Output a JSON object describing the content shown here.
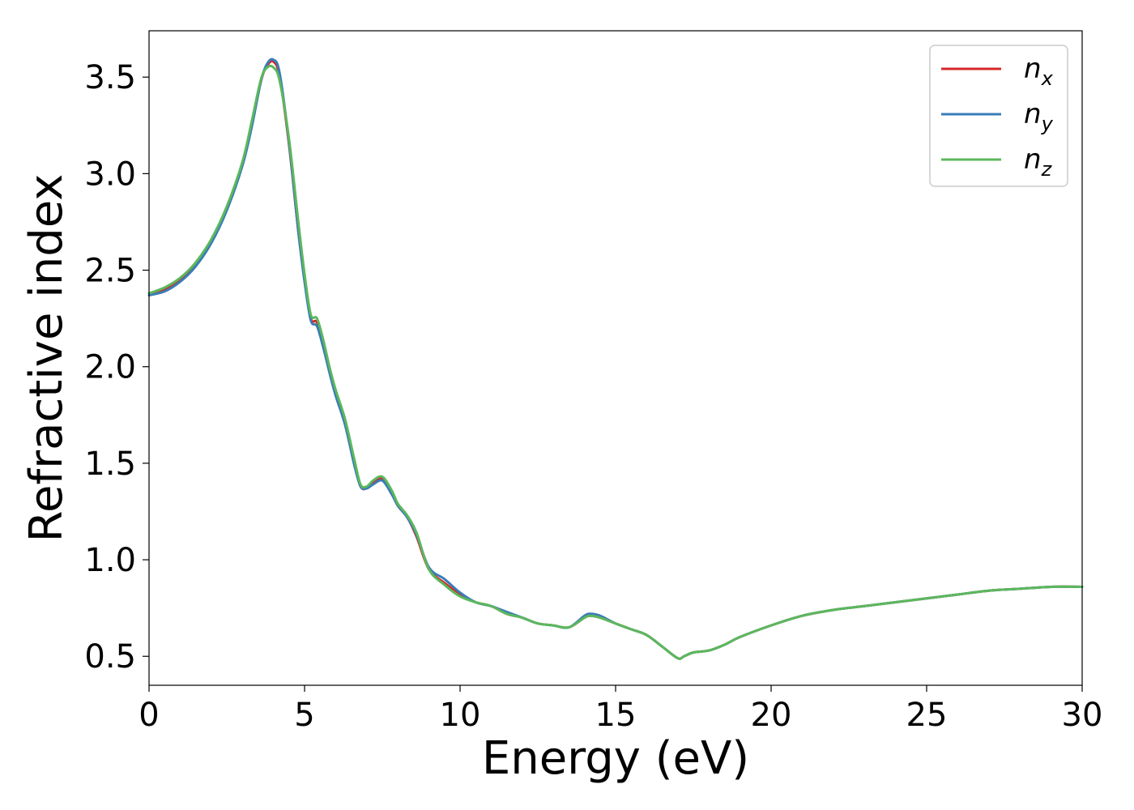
{
  "chart_data": {
    "type": "line",
    "title": "",
    "xlabel": "Energy (eV)",
    "ylabel": "Refractive index",
    "xlim": [
      0,
      30
    ],
    "ylim": [
      0.35,
      3.74
    ],
    "xticks": [
      0,
      5,
      10,
      15,
      20,
      25,
      30
    ],
    "yticks": [
      0.5,
      1.0,
      1.5,
      2.0,
      2.5,
      3.0,
      3.5
    ],
    "xtick_labels": [
      "0",
      "5",
      "10",
      "15",
      "20",
      "25",
      "30"
    ],
    "ytick_labels": [
      "0.5",
      "1.0",
      "1.5",
      "2.0",
      "2.5",
      "3.0",
      "3.5"
    ],
    "grid": false,
    "legend": "top-right",
    "series": [
      {
        "name": "n",
        "subscript": "x",
        "color": "#d62728",
        "x": [
          0,
          0.5,
          1,
          1.5,
          2,
          2.5,
          3,
          3.3,
          3.6,
          3.8,
          4.0,
          4.2,
          4.5,
          4.8,
          5.0,
          5.2,
          5.4,
          5.6,
          5.8,
          6.0,
          6.3,
          6.6,
          6.8,
          7.0,
          7.2,
          7.5,
          7.8,
          8.0,
          8.3,
          8.6,
          9.0,
          9.5,
          10.0,
          10.5,
          11.0,
          11.5,
          12.0,
          12.5,
          13.0,
          13.5,
          14.0,
          14.2,
          14.5,
          15.0,
          15.5,
          16.0,
          16.5,
          17.0,
          17.2,
          17.5,
          18.0,
          18.5,
          19.0,
          20.0,
          21.0,
          22.0,
          23.0,
          24.0,
          25.0,
          26.0,
          27.0,
          28.0,
          29.0,
          30.0
        ],
        "y": [
          2.38,
          2.4,
          2.45,
          2.53,
          2.65,
          2.82,
          3.05,
          3.25,
          3.48,
          3.56,
          3.58,
          3.5,
          3.15,
          2.7,
          2.45,
          2.25,
          2.23,
          2.12,
          1.98,
          1.86,
          1.72,
          1.5,
          1.38,
          1.37,
          1.4,
          1.42,
          1.35,
          1.28,
          1.22,
          1.12,
          0.95,
          0.88,
          0.82,
          0.78,
          0.76,
          0.72,
          0.7,
          0.67,
          0.66,
          0.65,
          0.7,
          0.71,
          0.7,
          0.67,
          0.64,
          0.61,
          0.55,
          0.49,
          0.5,
          0.52,
          0.53,
          0.56,
          0.6,
          0.66,
          0.71,
          0.74,
          0.76,
          0.78,
          0.8,
          0.82,
          0.84,
          0.85,
          0.86,
          0.86
        ]
      },
      {
        "name": "n",
        "subscript": "y",
        "color": "#3a7cb8",
        "x": [
          0,
          0.5,
          1,
          1.5,
          2,
          2.5,
          3,
          3.3,
          3.6,
          3.8,
          4.0,
          4.2,
          4.5,
          4.8,
          5.0,
          5.2,
          5.4,
          5.6,
          5.8,
          6.0,
          6.3,
          6.6,
          6.8,
          7.0,
          7.2,
          7.5,
          7.8,
          8.0,
          8.3,
          8.6,
          9.0,
          9.5,
          10.0,
          10.5,
          11.0,
          11.5,
          12.0,
          12.5,
          13.0,
          13.5,
          14.0,
          14.2,
          14.5,
          15.0,
          15.5,
          16.0,
          16.5,
          17.0,
          17.2,
          17.5,
          18.0,
          18.5,
          19.0,
          20.0,
          21.0,
          22.0,
          23.0,
          24.0,
          25.0,
          26.0,
          27.0,
          28.0,
          29.0,
          30.0
        ],
        "y": [
          2.37,
          2.39,
          2.44,
          2.52,
          2.64,
          2.81,
          3.04,
          3.24,
          3.48,
          3.57,
          3.59,
          3.52,
          3.16,
          2.7,
          2.44,
          2.24,
          2.21,
          2.1,
          1.97,
          1.85,
          1.7,
          1.49,
          1.38,
          1.37,
          1.39,
          1.41,
          1.34,
          1.28,
          1.22,
          1.13,
          0.96,
          0.9,
          0.83,
          0.78,
          0.76,
          0.73,
          0.7,
          0.67,
          0.66,
          0.65,
          0.71,
          0.72,
          0.71,
          0.67,
          0.64,
          0.61,
          0.55,
          0.49,
          0.5,
          0.52,
          0.53,
          0.56,
          0.6,
          0.66,
          0.71,
          0.74,
          0.76,
          0.78,
          0.8,
          0.82,
          0.84,
          0.85,
          0.86,
          0.86
        ]
      },
      {
        "name": "n",
        "subscript": "z",
        "color": "#5cb85c",
        "x": [
          0,
          0.5,
          1,
          1.5,
          2,
          2.5,
          3,
          3.3,
          3.6,
          3.8,
          4.0,
          4.2,
          4.5,
          4.8,
          5.0,
          5.2,
          5.4,
          5.6,
          5.8,
          6.0,
          6.3,
          6.6,
          6.8,
          7.0,
          7.2,
          7.5,
          7.8,
          8.0,
          8.3,
          8.6,
          9.0,
          9.5,
          10.0,
          10.5,
          11.0,
          11.5,
          12.0,
          12.5,
          13.0,
          13.5,
          14.0,
          14.2,
          14.5,
          15.0,
          15.5,
          16.0,
          16.5,
          17.0,
          17.2,
          17.5,
          18.0,
          18.5,
          19.0,
          20.0,
          21.0,
          22.0,
          23.0,
          24.0,
          25.0,
          26.0,
          27.0,
          28.0,
          29.0,
          30.0
        ],
        "y": [
          2.38,
          2.41,
          2.46,
          2.54,
          2.66,
          2.83,
          3.06,
          3.27,
          3.49,
          3.55,
          3.55,
          3.48,
          3.18,
          2.75,
          2.48,
          2.27,
          2.25,
          2.14,
          2.0,
          1.88,
          1.73,
          1.52,
          1.39,
          1.38,
          1.41,
          1.43,
          1.36,
          1.29,
          1.23,
          1.14,
          0.95,
          0.87,
          0.81,
          0.78,
          0.76,
          0.72,
          0.7,
          0.67,
          0.66,
          0.65,
          0.7,
          0.71,
          0.7,
          0.67,
          0.64,
          0.61,
          0.55,
          0.49,
          0.5,
          0.52,
          0.53,
          0.56,
          0.6,
          0.66,
          0.71,
          0.74,
          0.76,
          0.78,
          0.8,
          0.82,
          0.84,
          0.85,
          0.86,
          0.86
        ]
      }
    ]
  }
}
